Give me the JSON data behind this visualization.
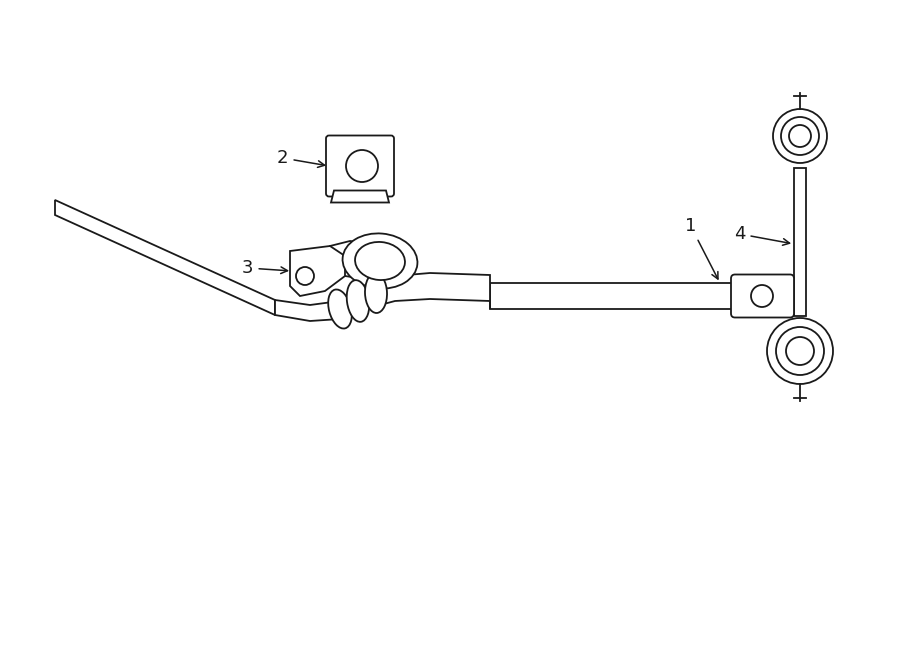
{
  "bg_color": "#ffffff",
  "line_color": "#1a1a1a",
  "lw": 1.3,
  "fig_width": 9.0,
  "fig_height": 6.61,
  "dpi": 100
}
